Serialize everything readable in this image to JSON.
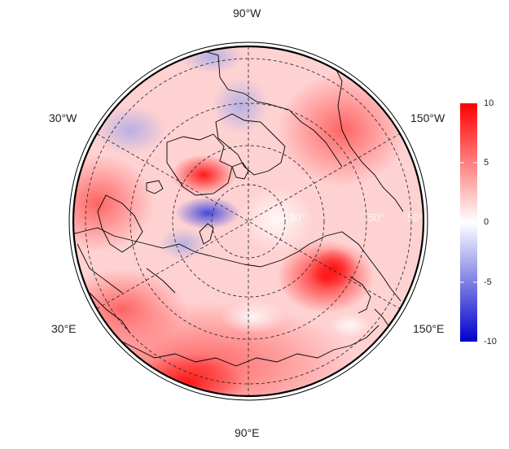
{
  "map": {
    "projection": "polar-stereographic-north",
    "longitude_labels": [
      {
        "id": "lon-90w",
        "text": "90°W"
      },
      {
        "id": "lon-30w",
        "text": "30°W"
      },
      {
        "id": "lon-150w",
        "text": "150°W"
      },
      {
        "id": "lon-30e",
        "text": "30°E"
      },
      {
        "id": "lon-150e",
        "text": "150°E"
      },
      {
        "id": "lon-90e",
        "text": "90°E"
      }
    ],
    "latitude_labels": [
      "30°",
      "50°",
      "50°"
    ],
    "graticule": {
      "style": "dashed",
      "visible": true
    },
    "coastlines": true
  },
  "colorbar": {
    "min": -10,
    "max": 10,
    "ticks": [
      10,
      5,
      0,
      -5,
      -10
    ],
    "colors": {
      "high": "#ff0000",
      "mid": "#ffffff",
      "low": "#0000cc"
    }
  },
  "colors": {
    "background_field": "#ffd6d6",
    "warm_anomaly": "#ff2020",
    "cold_anomaly": "#3344dd",
    "land_outline": "#000000"
  }
}
